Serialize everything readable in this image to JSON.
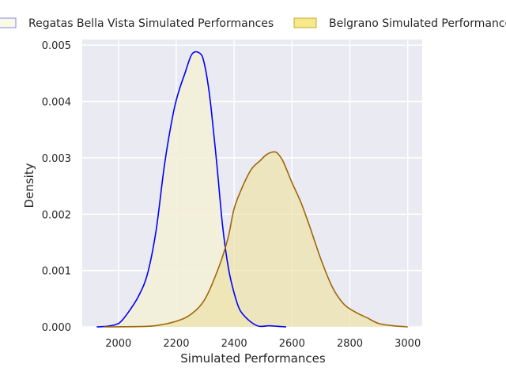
{
  "chart_data": {
    "type": "area",
    "xlabel": "Simulated Performances",
    "ylabel": "Density",
    "xlim": [
      1875,
      3050
    ],
    "ylim": [
      0,
      0.0051
    ],
    "xticks": [
      2000,
      2200,
      2400,
      2600,
      2800,
      3000
    ],
    "yticks": [
      0.0,
      0.001,
      0.002,
      0.003,
      0.004,
      0.005
    ],
    "ytick_labels": [
      "0.000",
      "0.001",
      "0.002",
      "0.003",
      "0.004",
      "0.005"
    ],
    "grid": true,
    "legend_position": "top, outside plot",
    "series": [
      {
        "name": "Regatas Bella Vista Simulated Performances",
        "line_color": "#0000ff",
        "fill_color": "#f3f0d6",
        "legend_edge": "#8080ff",
        "legend_fill": "#fafae0",
        "x": [
          1925,
          1960,
          1990,
          2010,
          2040,
          2070,
          2100,
          2130,
          2160,
          2190,
          2210,
          2230,
          2250,
          2265,
          2280,
          2290,
          2300,
          2310,
          2320,
          2340,
          2360,
          2380,
          2400,
          2420,
          2450,
          2480,
          2500,
          2520,
          2550,
          2580
        ],
        "y": [
          0,
          1e-05,
          4e-05,
          0.0001,
          0.0003,
          0.00055,
          0.00093,
          0.0017,
          0.0029,
          0.0038,
          0.0042,
          0.0045,
          0.0048,
          0.00488,
          0.00486,
          0.0048,
          0.0046,
          0.0043,
          0.0039,
          0.0029,
          0.0018,
          0.00105,
          0.0006,
          0.0003,
          0.00012,
          2e-05,
          1e-05,
          2e-05,
          1e-05,
          0
        ]
      },
      {
        "name": "Belgrano Simulated Performances",
        "line_color": "#a0660a",
        "fill_color": "#eee2a8",
        "legend_edge": "#c9a83a",
        "legend_fill": "#f6e98a",
        "x": [
          1950,
          2100,
          2150,
          2200,
          2250,
          2300,
          2350,
          2380,
          2400,
          2430,
          2460,
          2490,
          2510,
          2530,
          2545,
          2555,
          2570,
          2600,
          2630,
          2660,
          2700,
          2740,
          2780,
          2820,
          2860,
          2900,
          2950,
          3000
        ],
        "y": [
          0,
          1e-05,
          4e-05,
          0.0001,
          0.00022,
          0.0005,
          0.0011,
          0.0016,
          0.0021,
          0.0025,
          0.0028,
          0.00295,
          0.00305,
          0.0031,
          0.0031,
          0.00305,
          0.00293,
          0.00256,
          0.00222,
          0.0018,
          0.0012,
          0.0007,
          0.0004,
          0.00026,
          0.00016,
          6e-05,
          2e-05,
          0
        ]
      }
    ]
  }
}
